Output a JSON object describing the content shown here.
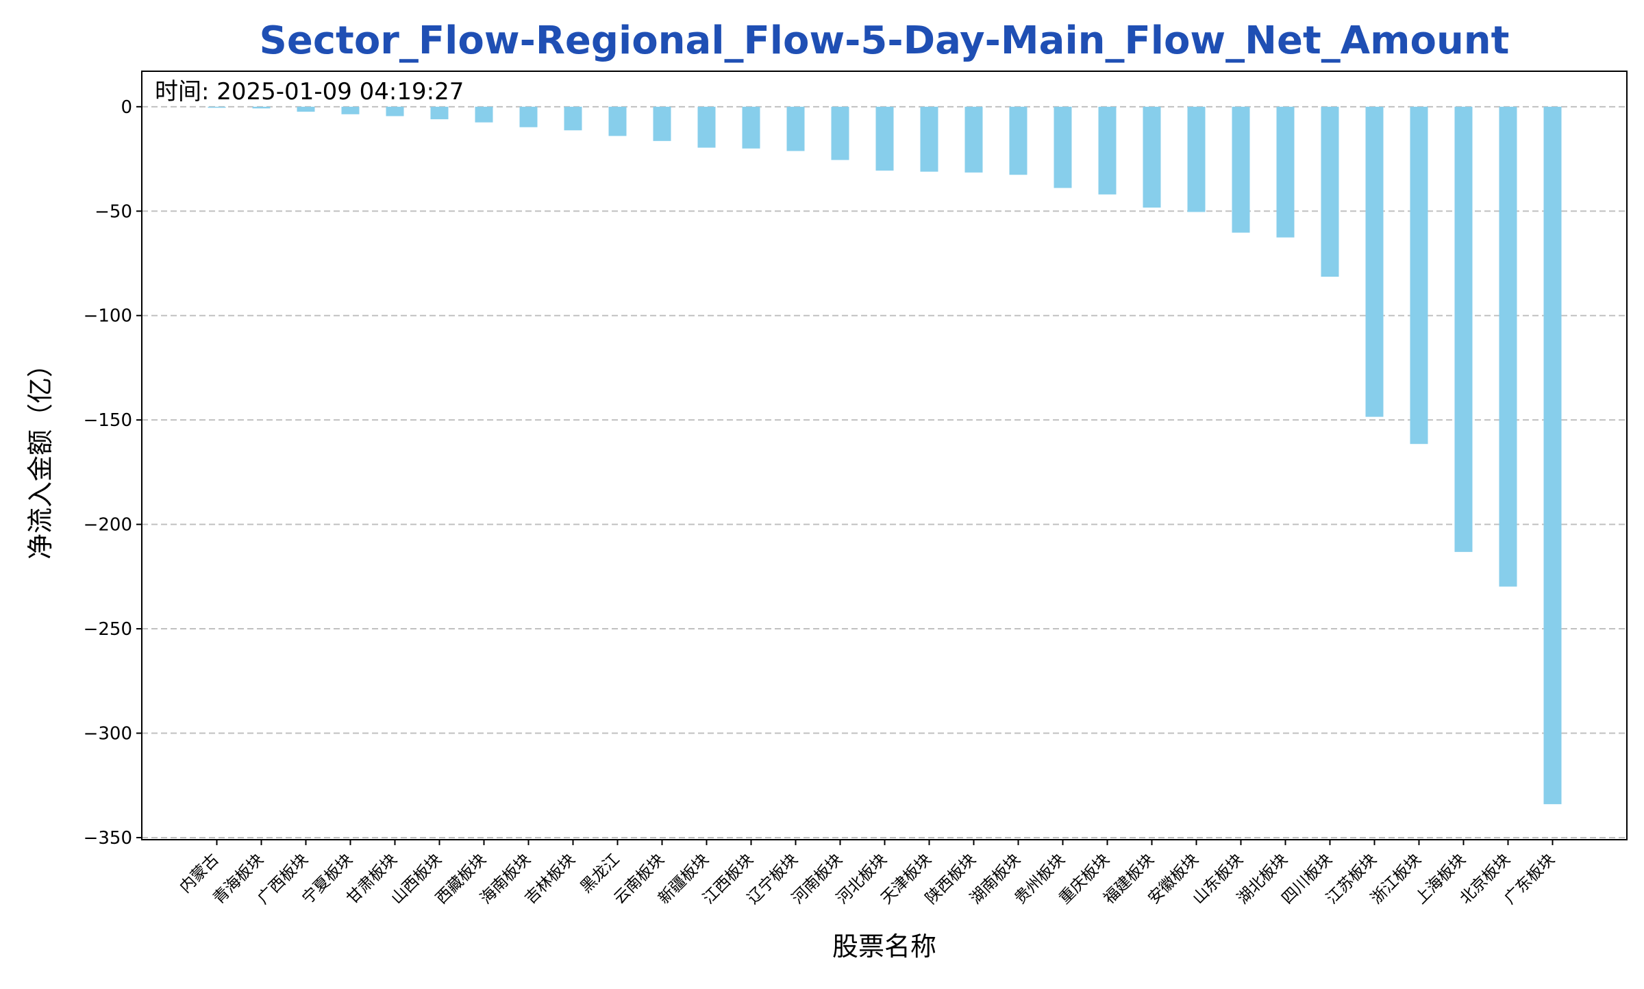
{
  "chart_data": {
    "type": "bar",
    "title": "Sector_Flow-Regional_Flow-5-Day-Main_Flow_Net_Amount",
    "annotation": "时间: 2025-01-09 04:19:27",
    "xlabel": "股票名称",
    "ylabel": "净流入金额（亿）",
    "ylim": [
      -351,
      17
    ],
    "yticks": [
      0,
      -50,
      -100,
      -150,
      -200,
      -250,
      -300,
      -350
    ],
    "ytick_labels": [
      "0",
      "−50",
      "−100",
      "−150",
      "−200",
      "−250",
      "−300",
      "−350"
    ],
    "grid": "y-dashed",
    "colors": {
      "bar": "#87ceeb",
      "title": "#1f4fb4",
      "grid": "#c0c0c0",
      "axis": "#000000"
    },
    "categories": [
      "内蒙古",
      "青海板块",
      "广西板块",
      "宁夏板块",
      "甘肃板块",
      "山西板块",
      "西藏板块",
      "海南板块",
      "吉林板块",
      "黑龙江",
      "云南板块",
      "新疆板块",
      "江西板块",
      "辽宁板块",
      "河南板块",
      "河北板块",
      "天津板块",
      "陕西板块",
      "湖南板块",
      "贵州板块",
      "重庆板块",
      "福建板块",
      "安徽板块",
      "山东板块",
      "湖北板块",
      "四川板块",
      "江苏板块",
      "浙江板块",
      "上海板块",
      "北京板块",
      "广东板块"
    ],
    "values": [
      -0.5,
      -0.8,
      -2.4,
      -3.6,
      -4.5,
      -6.0,
      -7.5,
      -9.8,
      -11.3,
      -14.0,
      -16.4,
      -19.6,
      -20.0,
      -21.2,
      -25.5,
      -30.6,
      -31.1,
      -31.5,
      -32.6,
      -38.9,
      -42.0,
      -48.3,
      -50.4,
      -60.3,
      -62.6,
      -81.4,
      -148.5,
      -161.5,
      -213.2,
      -229.8,
      -334.0
    ]
  }
}
